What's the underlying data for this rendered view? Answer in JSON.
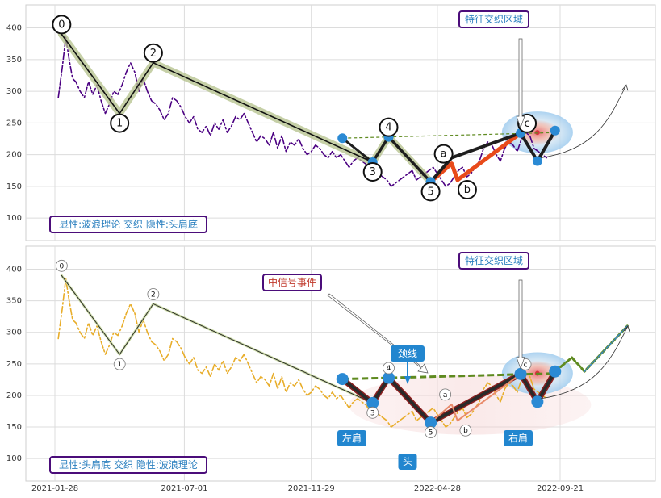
{
  "chart_data": [
    {
      "type": "line",
      "panel": "top",
      "ylim": [
        90,
        430
      ],
      "yticks": [
        100,
        150,
        200,
        250,
        300,
        350,
        400
      ],
      "grid": true,
      "series": [
        {
          "role": "price",
          "style": "dash-dot",
          "color": "#4b0082",
          "x": [
            "2021-02-01",
            "2021-02-06",
            "2021-02-10",
            "2021-02-14",
            "2021-02-18",
            "2021-02-22",
            "2021-02-27",
            "2021-03-04",
            "2021-03-09",
            "2021-03-14",
            "2021-03-19",
            "2021-03-24",
            "2021-03-29",
            "2021-04-03",
            "2021-04-08",
            "2021-04-13",
            "2021-04-18",
            "2021-04-23",
            "2021-04-28",
            "2021-05-03",
            "2021-05-08",
            "2021-05-13",
            "2021-05-18",
            "2021-05-23",
            "2021-05-28",
            "2021-06-02",
            "2021-06-07",
            "2021-06-12",
            "2021-06-17",
            "2021-06-22",
            "2021-06-27",
            "2021-07-02",
            "2021-07-07",
            "2021-07-12",
            "2021-07-17",
            "2021-07-22",
            "2021-07-27",
            "2021-08-01",
            "2021-08-06",
            "2021-08-11",
            "2021-08-16",
            "2021-08-21",
            "2021-08-26",
            "2021-08-31",
            "2021-09-05",
            "2021-09-10",
            "2021-09-15",
            "2021-09-20",
            "2021-09-25",
            "2021-09-30",
            "2021-10-05",
            "2021-10-10",
            "2021-10-15",
            "2021-10-20",
            "2021-10-25",
            "2021-10-30",
            "2021-11-04",
            "2021-11-09",
            "2021-11-14",
            "2021-11-19",
            "2021-11-24",
            "2021-11-29",
            "2021-12-04",
            "2021-12-09",
            "2021-12-14",
            "2021-12-19",
            "2021-12-24",
            "2021-12-29",
            "2022-01-03",
            "2022-01-08",
            "2022-01-13",
            "2022-01-18",
            "2022-01-23",
            "2022-01-28",
            "2022-02-02",
            "2022-02-07",
            "2022-02-12",
            "2022-02-17",
            "2022-02-22",
            "2022-02-27",
            "2022-03-04",
            "2022-03-09",
            "2022-03-14",
            "2022-03-19",
            "2022-03-24",
            "2022-03-29",
            "2022-04-03",
            "2022-04-08",
            "2022-04-13",
            "2022-04-18",
            "2022-04-23",
            "2022-04-28",
            "2022-05-03",
            "2022-05-08",
            "2022-05-13",
            "2022-05-18",
            "2022-05-23",
            "2022-05-28",
            "2022-06-02",
            "2022-06-07",
            "2022-06-12",
            "2022-06-17",
            "2022-06-22",
            "2022-06-27",
            "2022-07-02",
            "2022-07-07",
            "2022-07-12",
            "2022-07-17",
            "2022-07-22",
            "2022-07-27",
            "2022-08-01",
            "2022-08-06",
            "2022-08-11",
            "2022-08-16",
            "2022-08-21",
            "2022-08-26",
            "2022-08-31",
            "2022-09-05"
          ],
          "y": [
            290,
            340,
            385,
            350,
            320,
            315,
            300,
            290,
            315,
            295,
            310,
            285,
            265,
            280,
            300,
            295,
            310,
            330,
            345,
            330,
            300,
            320,
            300,
            285,
            280,
            270,
            255,
            265,
            290,
            285,
            275,
            260,
            250,
            260,
            240,
            235,
            245,
            230,
            250,
            240,
            255,
            235,
            245,
            260,
            255,
            265,
            250,
            235,
            220,
            230,
            225,
            215,
            235,
            210,
            230,
            205,
            220,
            215,
            225,
            210,
            200,
            205,
            215,
            210,
            200,
            195,
            205,
            195,
            200,
            190,
            180,
            190,
            195,
            190,
            185,
            175,
            180,
            170,
            165,
            160,
            150,
            155,
            160,
            165,
            170,
            175,
            160,
            165,
            170,
            175,
            180,
            170,
            160,
            150,
            155,
            165,
            175,
            180,
            165,
            170,
            180,
            190,
            210,
            220,
            215,
            200,
            190,
            210,
            220,
            215,
            205,
            225,
            235,
            230,
            210,
            205,
            200,
            195
          ]
        }
      ],
      "wave_points": {
        "labels": [
          "0",
          "1",
          "2",
          "3",
          "4",
          "5",
          "a",
          "b",
          "c"
        ],
        "x": [
          "2021-02-05",
          "2021-04-15",
          "2021-05-25",
          "2022-02-10",
          "2022-03-01",
          "2022-04-20",
          "2022-05-15",
          "2022-05-22",
          "2022-08-05"
        ],
        "y": [
          390,
          265,
          345,
          188,
          228,
          157,
          186,
          160,
          234
        ]
      },
      "trend_line": {
        "x": [
          "2022-01-05",
          "2022-09-20"
        ],
        "y": [
          226,
          235
        ]
      },
      "annotations": {
        "region": "特征交织区域",
        "legend_box": "显性:波浪理论 交织 隐性:头肩底"
      }
    },
    {
      "type": "line",
      "panel": "bottom",
      "ylim": [
        90,
        430
      ],
      "yticks": [
        100,
        150,
        200,
        250,
        300,
        350,
        400
      ],
      "xticks": [
        "2021-01-28",
        "2021-07-01",
        "2021-11-29",
        "2022-04-28",
        "2022-09-21"
      ],
      "grid": true,
      "series": [
        {
          "role": "price",
          "style": "dash-dot",
          "color": "#e8ad2a",
          "x": [
            "2021-02-01",
            "2021-02-06",
            "2021-02-10",
            "2021-02-14",
            "2021-02-18",
            "2021-02-22",
            "2021-02-27",
            "2021-03-04",
            "2021-03-09",
            "2021-03-14",
            "2021-03-19",
            "2021-03-24",
            "2021-03-29",
            "2021-04-03",
            "2021-04-08",
            "2021-04-13",
            "2021-04-18",
            "2021-04-23",
            "2021-04-28",
            "2021-05-03",
            "2021-05-08",
            "2021-05-13",
            "2021-05-18",
            "2021-05-23",
            "2021-05-28",
            "2021-06-02",
            "2021-06-07",
            "2021-06-12",
            "2021-06-17",
            "2021-06-22",
            "2021-06-27",
            "2021-07-02",
            "2021-07-07",
            "2021-07-12",
            "2021-07-17",
            "2021-07-22",
            "2021-07-27",
            "2021-08-01",
            "2021-08-06",
            "2021-08-11",
            "2021-08-16",
            "2021-08-21",
            "2021-08-26",
            "2021-08-31",
            "2021-09-05",
            "2021-09-10",
            "2021-09-15",
            "2021-09-20",
            "2021-09-25",
            "2021-09-30",
            "2021-10-05",
            "2021-10-10",
            "2021-10-15",
            "2021-10-20",
            "2021-10-25",
            "2021-10-30",
            "2021-11-04",
            "2021-11-09",
            "2021-11-14",
            "2021-11-19",
            "2021-11-24",
            "2021-11-29",
            "2021-12-04",
            "2021-12-09",
            "2021-12-14",
            "2021-12-19",
            "2021-12-24",
            "2021-12-29",
            "2022-01-03",
            "2022-01-08",
            "2022-01-13",
            "2022-01-18",
            "2022-01-23",
            "2022-01-28",
            "2022-02-02",
            "2022-02-07",
            "2022-02-12",
            "2022-02-17",
            "2022-02-22",
            "2022-02-27",
            "2022-03-04",
            "2022-03-09",
            "2022-03-14",
            "2022-03-19",
            "2022-03-24",
            "2022-03-29",
            "2022-04-03",
            "2022-04-08",
            "2022-04-13",
            "2022-04-18",
            "2022-04-23",
            "2022-04-28",
            "2022-05-03",
            "2022-05-08",
            "2022-05-13",
            "2022-05-18",
            "2022-05-23",
            "2022-05-28",
            "2022-06-02",
            "2022-06-07",
            "2022-06-12",
            "2022-06-17",
            "2022-06-22",
            "2022-06-27",
            "2022-07-02",
            "2022-07-07",
            "2022-07-12",
            "2022-07-17",
            "2022-07-22",
            "2022-07-27",
            "2022-08-01",
            "2022-08-06",
            "2022-08-11",
            "2022-08-16",
            "2022-08-21",
            "2022-08-26",
            "2022-08-31",
            "2022-09-05"
          ],
          "y": [
            290,
            340,
            385,
            350,
            320,
            315,
            300,
            290,
            315,
            295,
            310,
            285,
            265,
            280,
            300,
            295,
            310,
            330,
            345,
            330,
            300,
            320,
            300,
            285,
            280,
            270,
            255,
            265,
            290,
            285,
            275,
            260,
            250,
            260,
            240,
            235,
            245,
            230,
            250,
            240,
            255,
            235,
            245,
            260,
            255,
            265,
            250,
            235,
            220,
            230,
            225,
            215,
            235,
            210,
            230,
            205,
            220,
            215,
            225,
            210,
            200,
            205,
            215,
            210,
            200,
            195,
            205,
            195,
            200,
            190,
            180,
            190,
            195,
            190,
            185,
            175,
            180,
            170,
            165,
            160,
            150,
            155,
            160,
            165,
            170,
            175,
            160,
            165,
            170,
            175,
            180,
            170,
            160,
            150,
            155,
            165,
            175,
            180,
            165,
            170,
            180,
            190,
            210,
            220,
            215,
            200,
            190,
            210,
            220,
            215,
            205,
            225,
            235,
            230,
            210,
            205,
            200,
            195
          ]
        }
      ],
      "wave_points": {
        "labels": [
          "0",
          "1",
          "2",
          "3",
          "4",
          "5",
          "a",
          "b",
          "c"
        ],
        "x": [
          "2021-02-05",
          "2021-04-15",
          "2021-05-25",
          "2022-02-10",
          "2022-03-01",
          "2022-04-20",
          "2022-05-15",
          "2022-05-22",
          "2022-08-05"
        ],
        "y": [
          390,
          265,
          345,
          188,
          228,
          157,
          186,
          160,
          234
        ]
      },
      "head_shoulders": {
        "left_shoulder": "左肩",
        "head": "头",
        "right_shoulder": "右肩",
        "neckline": "颈线"
      },
      "trend_line": {
        "x": [
          "2022-01-05",
          "2022-09-20"
        ],
        "y": [
          226,
          235
        ]
      },
      "annotations": {
        "region": "特征交织区域",
        "event": "中信号事件",
        "legend_box": "显性:头肩底 交织 隐性:波浪理论"
      }
    }
  ]
}
